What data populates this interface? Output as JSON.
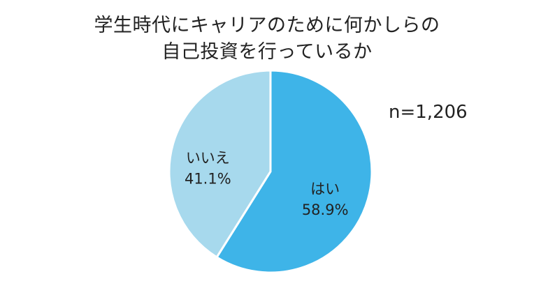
{
  "chart_data": {
    "type": "pie",
    "title_lines": [
      "学生時代にキャリアのために何かしらの",
      "自己投資を行っているか"
    ],
    "sample_size": "n=1,206",
    "slices": [
      {
        "label": "はい",
        "percent_text": "58.9%",
        "value": 58.9,
        "color": "#3eb4e8"
      },
      {
        "label": "いいえ",
        "percent_text": "41.1%",
        "value": 41.1,
        "color": "#a7d9ed"
      }
    ]
  }
}
